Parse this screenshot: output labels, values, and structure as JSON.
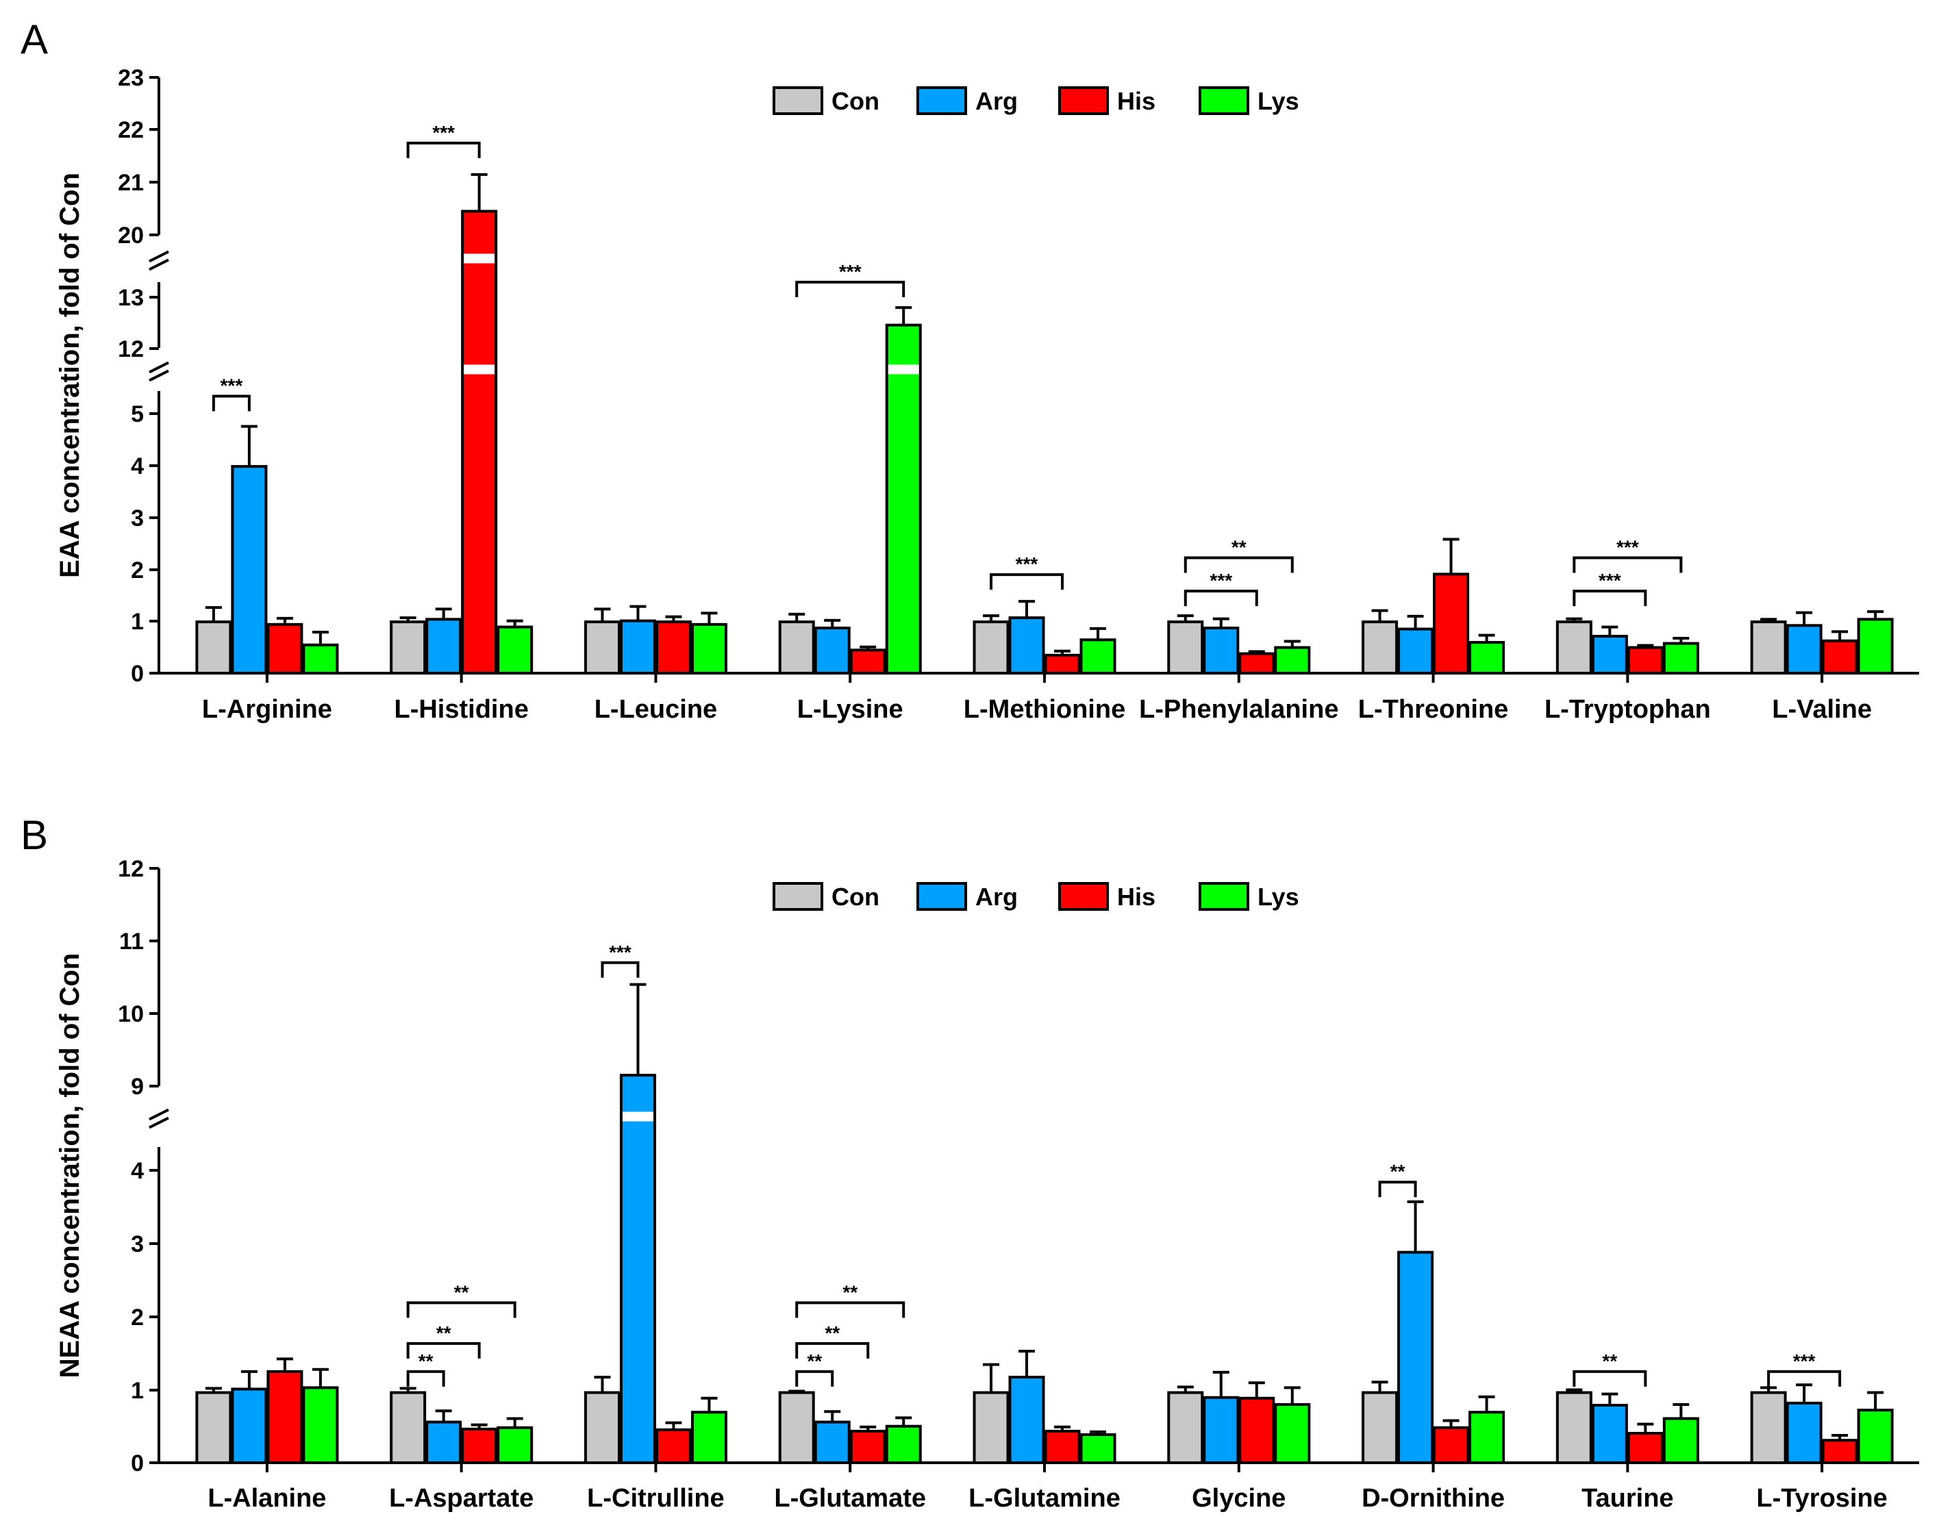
{
  "legend": [
    {
      "name": "Con",
      "color": "#c8c8c8"
    },
    {
      "name": "Arg",
      "color": "#00a0ff"
    },
    {
      "name": "His",
      "color": "#ff0000"
    },
    {
      "name": "Lys",
      "color": "#00ff00"
    }
  ],
  "chart_data": [
    {
      "type": "bar",
      "panel_label": "A",
      "title": "",
      "ylabel": "EAA concentration, fold of Con",
      "xlabel": "",
      "axis_breaks": [
        [
          5.5,
          12
        ],
        [
          13.5,
          20
        ]
      ],
      "y_ticks": [
        "0",
        "1",
        "2",
        "3",
        "4",
        "5",
        "12",
        "13",
        "20",
        "21",
        "22",
        "23"
      ],
      "ylim": [
        0,
        23
      ],
      "categories": [
        "L-Arginine",
        "L-Histidine",
        "L-Leucine",
        "L-Lysine",
        "L-Methionine",
        "L-Phenylalanine",
        "L-Threonine",
        "L-Tryptophan",
        "L-Valine"
      ],
      "series": [
        {
          "name": "Con",
          "values": [
            1.0,
            1.0,
            1.0,
            1.0,
            1.0,
            1.0,
            1.0,
            1.0,
            1.0
          ],
          "errors": [
            0.28,
            0.08,
            0.25,
            0.15,
            0.12,
            0.12,
            0.22,
            0.06,
            0.05
          ]
        },
        {
          "name": "Arg",
          "values": [
            4.03,
            1.05,
            1.02,
            0.88,
            1.08,
            0.88,
            0.86,
            0.72,
            0.93
          ],
          "errors": [
            0.78,
            0.2,
            0.28,
            0.15,
            0.32,
            0.18,
            0.25,
            0.18,
            0.25
          ]
        },
        {
          "name": "His",
          "values": [
            0.95,
            20.45,
            1.0,
            0.45,
            0.35,
            0.38,
            1.93,
            0.5,
            0.63
          ],
          "errors": [
            0.12,
            0.7,
            0.1,
            0.06,
            0.08,
            0.04,
            0.68,
            0.04,
            0.18
          ]
        },
        {
          "name": "Lys",
          "values": [
            0.55,
            0.9,
            0.95,
            12.52,
            0.65,
            0.5,
            0.6,
            0.58,
            1.05
          ],
          "errors": [
            0.25,
            0.12,
            0.22,
            0.4,
            0.22,
            0.12,
            0.14,
            0.1,
            0.15
          ]
        }
      ],
      "significance": [
        {
          "category": 0,
          "from": "Con",
          "to": "Arg",
          "label": "***",
          "y": 5.4
        },
        {
          "category": 1,
          "from": "Con",
          "to": "His",
          "label": "***",
          "y": 21.75
        },
        {
          "category": 3,
          "from": "Con",
          "to": "Lys",
          "label": "***",
          "y": 13.5
        },
        {
          "category": 4,
          "from": "Con",
          "to": "His",
          "label": "***",
          "y": 1.92
        },
        {
          "category": 5,
          "from": "Con",
          "to": "His",
          "label": "***",
          "y": 1.6
        },
        {
          "category": 5,
          "from": "Con",
          "to": "Lys",
          "label": "**",
          "y": 2.25
        },
        {
          "category": 7,
          "from": "Con",
          "to": "His",
          "label": "***",
          "y": 1.6
        },
        {
          "category": 7,
          "from": "Con",
          "to": "Lys",
          "label": "***",
          "y": 2.25
        }
      ]
    },
    {
      "type": "bar",
      "panel_label": "B",
      "title": "",
      "ylabel": "NEAA concentration, fold of Con",
      "xlabel": "",
      "axis_breaks": [
        [
          4.5,
          9
        ]
      ],
      "y_ticks": [
        "0",
        "1",
        "2",
        "3",
        "4",
        "9",
        "10",
        "11",
        "12"
      ],
      "ylim": [
        0,
        12
      ],
      "categories": [
        "L-Alanine",
        "L-Aspartate",
        "L-Citrulline",
        "L-Glutamate",
        "L-Glutamine",
        "Glycine",
        "D-Ornithine",
        "Taurine",
        "L-Tyrosine"
      ],
      "series": [
        {
          "name": "Con",
          "values": [
            1.0,
            1.0,
            1.0,
            1.0,
            1.0,
            1.0,
            1.0,
            1.0,
            1.0
          ],
          "errors": [
            0.06,
            0.06,
            0.22,
            0.02,
            0.4,
            0.08,
            0.15,
            0.04,
            0.07
          ]
        },
        {
          "name": "Arg",
          "values": [
            1.05,
            0.58,
            9.15,
            0.58,
            1.22,
            0.93,
            3.0,
            0.82,
            0.85
          ],
          "errors": [
            0.25,
            0.16,
            1.25,
            0.15,
            0.37,
            0.36,
            0.72,
            0.16,
            0.26
          ]
        },
        {
          "name": "His",
          "values": [
            1.3,
            0.48,
            0.47,
            0.45,
            0.45,
            0.92,
            0.5,
            0.42,
            0.32
          ],
          "errors": [
            0.18,
            0.06,
            0.1,
            0.06,
            0.06,
            0.22,
            0.1,
            0.13,
            0.07
          ]
        },
        {
          "name": "Lys",
          "values": [
            1.07,
            0.5,
            0.72,
            0.52,
            0.4,
            0.83,
            0.72,
            0.63,
            0.75
          ],
          "errors": [
            0.26,
            0.13,
            0.2,
            0.12,
            0.04,
            0.24,
            0.22,
            0.2,
            0.25
          ]
        }
      ],
      "significance": [
        {
          "category": 1,
          "from": "Con",
          "to": "Arg",
          "label": "**",
          "y": 1.3
        },
        {
          "category": 1,
          "from": "Con",
          "to": "His",
          "label": "**",
          "y": 1.7
        },
        {
          "category": 1,
          "from": "Con",
          "to": "Lys",
          "label": "**",
          "y": 2.28
        },
        {
          "category": 2,
          "from": "Con",
          "to": "Arg",
          "label": "***",
          "y": 10.7
        },
        {
          "category": 3,
          "from": "Con",
          "to": "Arg",
          "label": "**",
          "y": 1.3
        },
        {
          "category": 3,
          "from": "Con",
          "to": "His",
          "label": "**",
          "y": 1.7
        },
        {
          "category": 3,
          "from": "Con",
          "to": "Lys",
          "label": "**",
          "y": 2.28
        },
        {
          "category": 6,
          "from": "Con",
          "to": "Arg",
          "label": "**",
          "y": 4.0
        },
        {
          "category": 7,
          "from": "Con",
          "to": "His",
          "label": "**",
          "y": 1.3
        },
        {
          "category": 8,
          "from": "Con",
          "to": "His",
          "label": "***",
          "y": 1.3
        }
      ]
    }
  ]
}
